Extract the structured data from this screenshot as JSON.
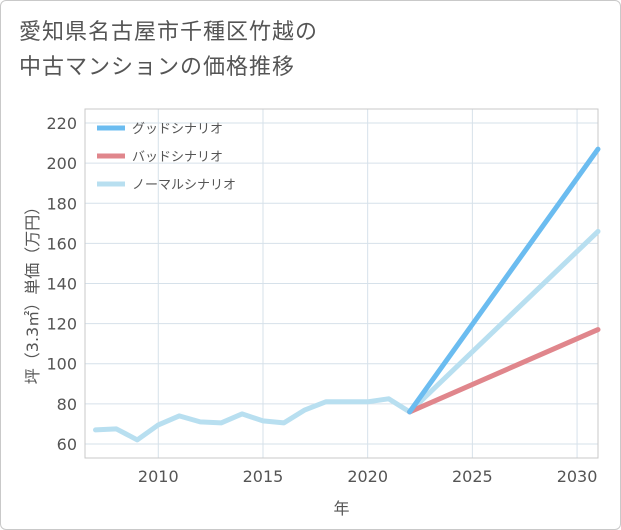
{
  "title_lines": [
    "愛知県名古屋市千種区竹越の",
    "中古マンションの価格推移"
  ],
  "chart_data": {
    "type": "line",
    "title": "愛知県名古屋市千種区竹越の中古マンションの価格推移",
    "xlabel": "年",
    "ylabel": "坪（3.3㎡）単価（万円）",
    "xlim": [
      2006.5,
      2031
    ],
    "ylim": [
      53,
      227
    ],
    "xticks": [
      2010,
      2015,
      2020,
      2025,
      2030
    ],
    "yticks": [
      60,
      80,
      100,
      120,
      140,
      160,
      180,
      200,
      220
    ],
    "grid": true,
    "legend_position": "top-left",
    "series": [
      {
        "name": "グッドシナリオ",
        "color": "#6bbcf0",
        "x": [
          2022,
          2031
        ],
        "values": [
          76,
          207
        ]
      },
      {
        "name": "バッドシナリオ",
        "color": "#e0868c",
        "x": [
          2022,
          2031
        ],
        "values": [
          76,
          117
        ]
      },
      {
        "name": "ノーマルシナリオ",
        "color": "#b8dff0",
        "x": [
          2007,
          2008,
          2009,
          2010,
          2011,
          2012,
          2013,
          2014,
          2015,
          2016,
          2017,
          2018,
          2019,
          2020,
          2021,
          2022,
          2031
        ],
        "values": [
          67,
          67.5,
          62,
          69.5,
          74,
          71,
          70.5,
          75,
          71.5,
          70.5,
          77,
          81,
          81,
          81,
          82.5,
          76,
          166
        ]
      }
    ]
  }
}
